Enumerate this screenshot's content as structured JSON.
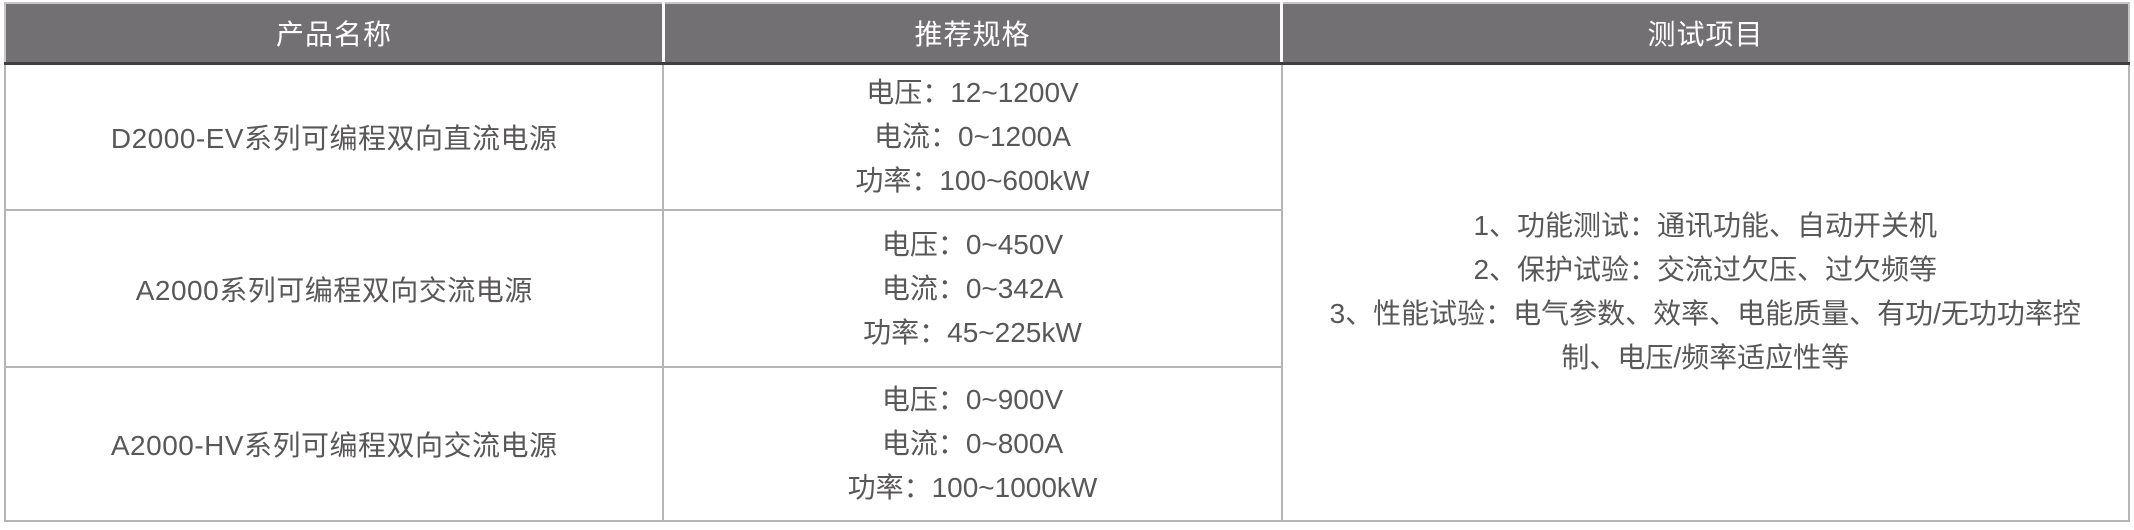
{
  "table": {
    "columns": [
      {
        "label": "产品名称"
      },
      {
        "label": "推荐规格"
      },
      {
        "label": "测试项目"
      }
    ],
    "rows": [
      {
        "product": "D2000-EV系列可编程双向直流电源",
        "specs": [
          "电压：12~1200V",
          "电流：0~1200A",
          "功率：100~600kW"
        ]
      },
      {
        "product": "A2000系列可编程双向交流电源",
        "specs": [
          "电压：0~450V",
          "电流：0~342A",
          "功率：45~225kW"
        ]
      },
      {
        "product": "A2000-HV系列可编程双向交流电源",
        "specs": [
          "电压：0~900V",
          "电流：0~800A",
          "功率：100~1000kW"
        ]
      }
    ],
    "test_items": [
      "1、功能测试：通讯功能、自动开关机",
      "2、保护试验：交流过欠压、过欠频等",
      "3、性能试验：电气参数、效率、电能质量、有功/无功功率控制、电压/频率适应性等"
    ],
    "colors": {
      "header_bg": "#727072",
      "header_text": "#ffffff",
      "header_divider": "#fbfbfb",
      "header_underline": "#3f3d3e",
      "body_border": "#b5b5b6",
      "body_text": "#595757"
    }
  }
}
